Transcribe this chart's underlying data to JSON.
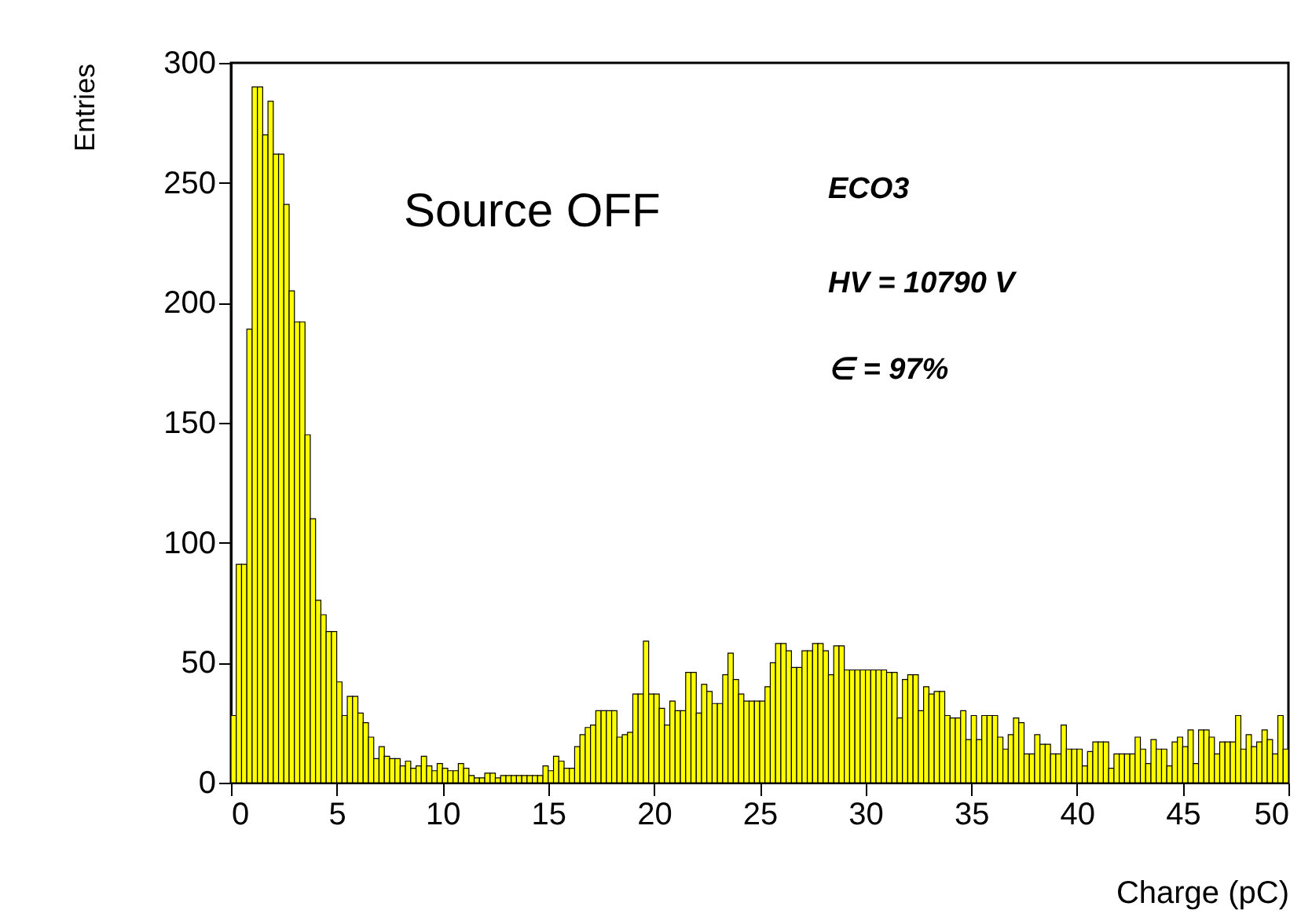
{
  "chart_data": {
    "type": "histogram",
    "xlabel": "Charge (pC)",
    "ylabel": "Entries",
    "color": "#ffff00",
    "annotations": [
      "Source OFF",
      "ECO3",
      "HV = 10790 V",
      "∈ = 97%"
    ],
    "bins": [
      0,
      0.25,
      0.5,
      0.75,
      1,
      1.25,
      1.5,
      1.75,
      2,
      2.25,
      2.5,
      2.75,
      3,
      3.25,
      3.5,
      3.75,
      4,
      4.25,
      4.5,
      4.75,
      5,
      5.25,
      5.5,
      5.75,
      6,
      6.25,
      6.5,
      6.75,
      7,
      7.25,
      7.5,
      7.75,
      8,
      8.25,
      8.5,
      8.75,
      9,
      9.25,
      9.5,
      9.75,
      10,
      10.25,
      10.5,
      10.75,
      11,
      11.25,
      11.5,
      11.75,
      12,
      12.25,
      12.5,
      12.75,
      13,
      13.25,
      13.5,
      13.75,
      14,
      14.25,
      14.5,
      14.75,
      15,
      15.25,
      15.5,
      15.75,
      16,
      16.25,
      16.5,
      16.75,
      17,
      17.25,
      17.5,
      17.75,
      18,
      18.25,
      18.5,
      18.75,
      19,
      19.25,
      19.5,
      19.75,
      20,
      20.25,
      20.5,
      20.75,
      21,
      21.25,
      21.5,
      21.75,
      22,
      22.25,
      22.5,
      22.75,
      23,
      23.25,
      23.5,
      23.75,
      24,
      24.25,
      24.5,
      24.75,
      25,
      25.25,
      25.5,
      25.75,
      26,
      26.25,
      26.5,
      26.75,
      27,
      27.25,
      27.5,
      27.75,
      28,
      28.25,
      28.5,
      28.75,
      29,
      29.25,
      29.5,
      29.75,
      30,
      30.25,
      30.5,
      30.75,
      31,
      31.25,
      31.5,
      31.75,
      32,
      32.25,
      32.5,
      32.75,
      33,
      33.25,
      33.5,
      33.75,
      34,
      34.25,
      34.5,
      34.75,
      35,
      35.25,
      35.5,
      35.75,
      36,
      36.25,
      36.5,
      36.75,
      37,
      37.25,
      37.5,
      37.75,
      38,
      38.25,
      38.5,
      38.75,
      39,
      39.25,
      39.5,
      39.75,
      40,
      40.25,
      40.5,
      40.75,
      41,
      41.25,
      41.5,
      41.75,
      42,
      42.25,
      42.5,
      42.75,
      43,
      43.25,
      43.5,
      43.75,
      44,
      44.25,
      44.5,
      44.75,
      45,
      45.25,
      45.5,
      45.75,
      46,
      46.25,
      46.5,
      46.75,
      47,
      47.25,
      47.5,
      47.75,
      48,
      48.25,
      48.5,
      48.75,
      49,
      49.25,
      49.5,
      49.75,
      50
    ],
    "values": [
      28,
      91,
      91,
      189,
      290,
      290,
      270,
      284,
      262,
      262,
      241,
      205,
      192,
      192,
      145,
      110,
      76,
      70,
      63,
      63,
      42,
      28,
      36,
      36,
      29,
      25,
      19,
      10,
      15,
      11,
      10,
      10,
      7,
      9,
      6,
      7,
      11,
      7,
      5,
      8,
      6,
      5,
      5,
      8,
      6,
      3,
      2,
      2,
      4,
      4,
      2,
      3,
      3,
      3,
      3,
      3,
      3,
      3,
      3,
      7,
      5,
      11,
      9,
      6,
      6,
      15,
      20,
      23,
      24,
      30,
      30,
      30,
      30,
      19,
      20,
      21,
      37,
      37,
      59,
      37,
      37,
      31,
      24,
      34,
      30,
      30,
      46,
      46,
      29,
      41,
      38,
      33,
      33,
      45,
      54,
      43,
      37,
      34,
      34,
      34,
      34,
      40,
      50,
      58,
      58,
      55,
      48,
      48,
      55,
      55,
      58,
      58,
      55,
      45,
      57,
      57,
      47,
      47,
      47,
      47,
      47,
      47,
      47,
      47,
      46,
      46,
      27,
      43,
      45,
      45,
      30,
      40,
      37,
      38,
      38,
      28,
      27,
      27,
      30,
      18,
      28,
      18,
      28,
      28,
      28,
      19,
      14,
      20,
      27,
      25,
      12,
      12,
      20,
      16,
      16,
      12,
      12,
      24,
      14,
      14,
      14,
      7,
      13,
      17,
      17,
      17,
      6,
      12,
      12,
      12,
      12,
      19,
      14,
      8,
      18,
      14,
      14,
      7,
      17,
      19,
      15,
      22,
      8,
      22,
      22,
      19,
      12,
      17,
      17,
      17,
      28,
      14,
      20,
      15,
      17,
      22,
      18,
      12,
      28,
      14
    ],
    "xlim": [
      0,
      50
    ],
    "xticks": [
      0,
      5,
      10,
      15,
      20,
      25,
      30,
      35,
      40,
      45,
      50
    ],
    "ylim": [
      0,
      300
    ],
    "yticks": [
      0,
      50,
      100,
      150,
      200,
      250,
      300
    ]
  }
}
